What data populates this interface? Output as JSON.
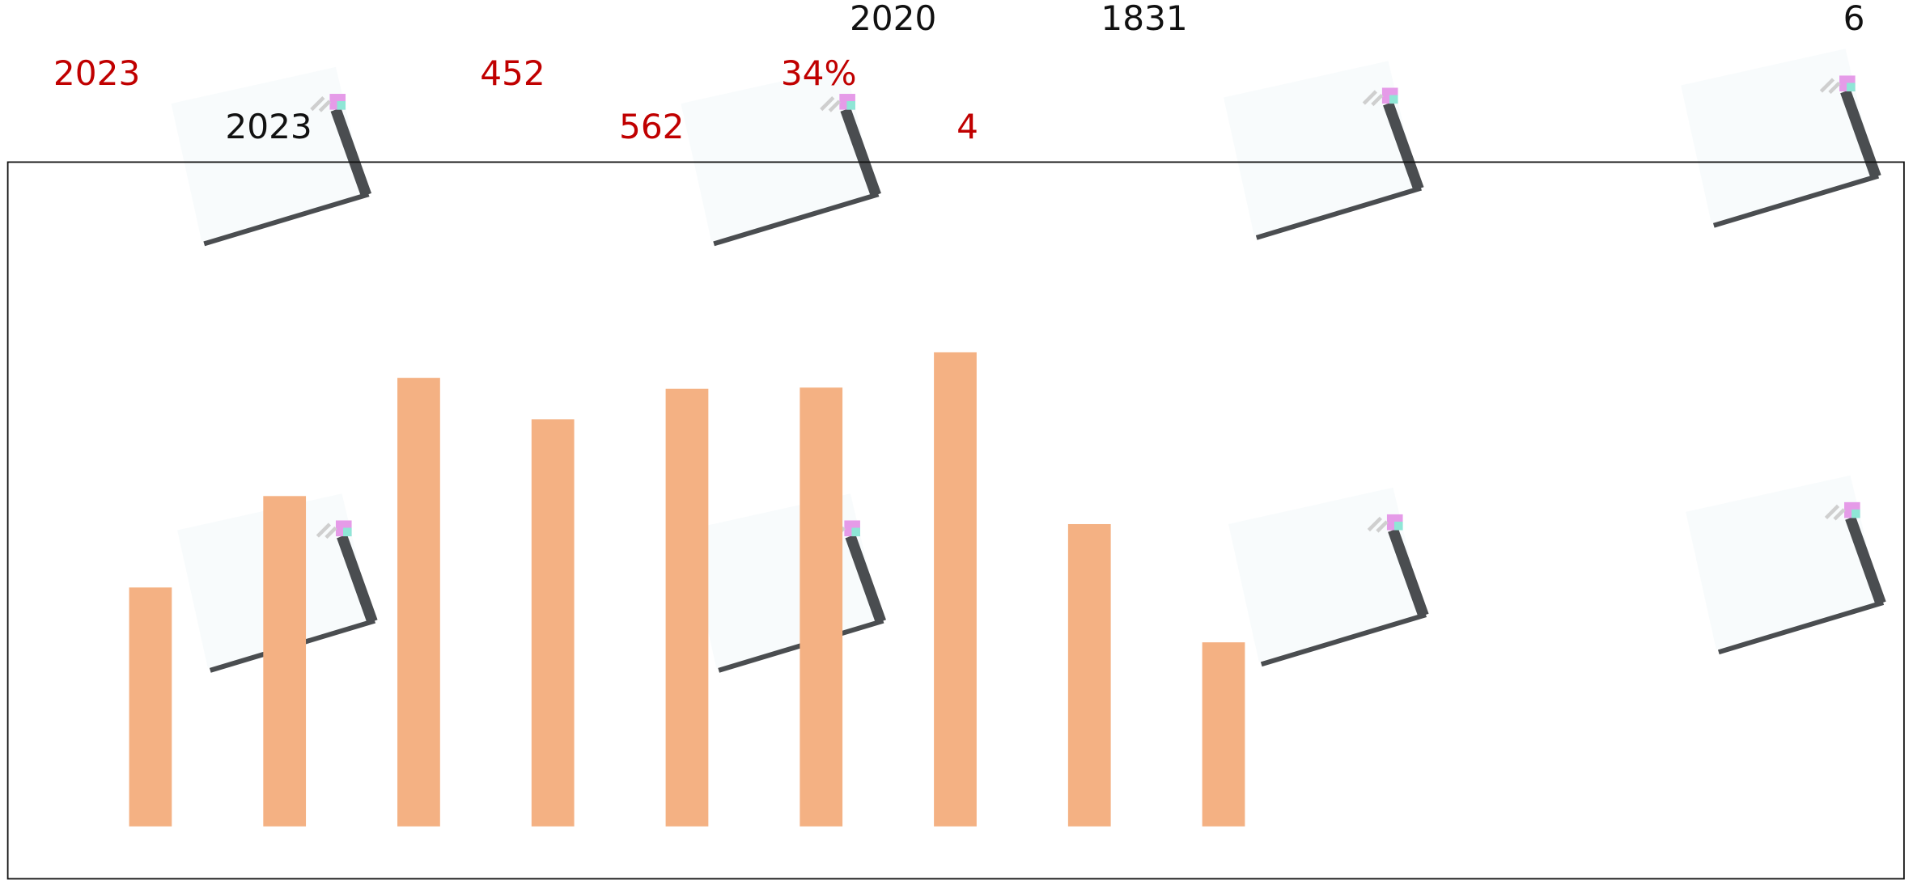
{
  "labels": [
    "2020",
    "1831",
    "6",
    "2023",
    "452",
    "34%",
    "2023",
    "562",
    "4"
  ],
  "bars": {
    "values": [
      196,
      271,
      368,
      334,
      359,
      360,
      389,
      248,
      151
    ],
    "color": "#f4b183"
  }
}
